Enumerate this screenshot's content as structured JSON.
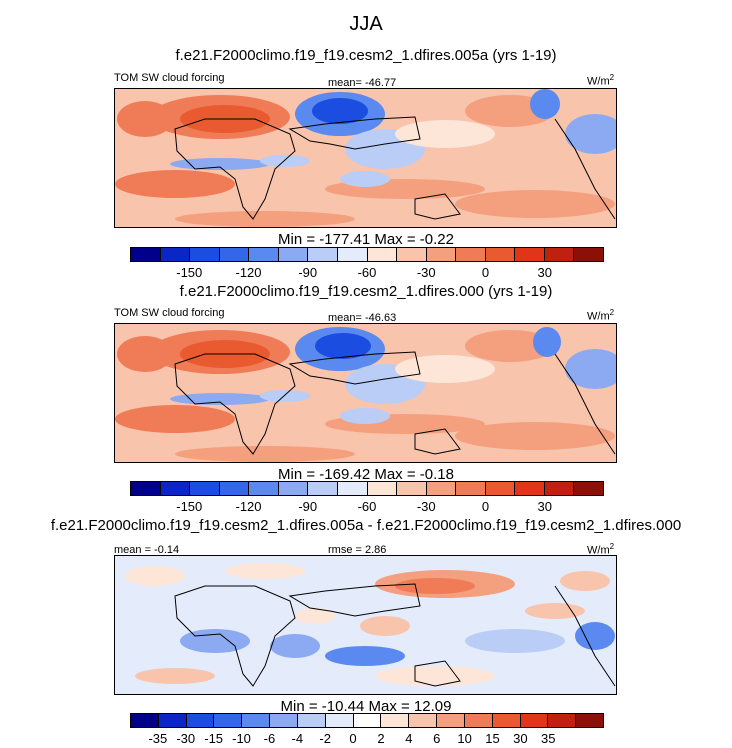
{
  "figure": {
    "title": "JJA",
    "colors": {
      "abs_scale": [
        "#00008b",
        "#0a26c6",
        "#1a4de0",
        "#3366e8",
        "#5a8af0",
        "#8caaf2",
        "#b9cdf7",
        "#e4ecfb",
        "#fde6d8",
        "#f8c4ac",
        "#f4a07e",
        "#ef7c56",
        "#ea5a30",
        "#e03518",
        "#c02010",
        "#8b1008"
      ],
      "diff_scale": [
        "#00008b",
        "#0a26c6",
        "#1a4de0",
        "#3366e8",
        "#5a8af0",
        "#8caaf2",
        "#b9cdf7",
        "#e4ecfb",
        "#ffffff",
        "#fde6d8",
        "#f8c4ac",
        "#f4a07e",
        "#ef7c56",
        "#ea5a30",
        "#e03518",
        "#c02010",
        "#8b1008"
      ],
      "land_outline": "#000000"
    }
  },
  "panels": [
    {
      "case_title": "f.e21.F2000climo.f19_f19.cesm2_1.dfires.005a (yrs 1-19)",
      "left_label": "TOM SW cloud forcing",
      "center_label": "mean= -46.77",
      "units": "W/m",
      "units_sup": "2",
      "minmax": "Min = -177.41 Max =  -0.22",
      "colorbar_ticks": [
        "-150",
        "-120",
        "-90",
        "-60",
        "-30",
        "0",
        "30"
      ]
    },
    {
      "case_title": "f.e21.F2000climo.f19_f19.cesm2_1.dfires.000 (yrs 1-19)",
      "left_label": "TOM SW cloud forcing",
      "center_label": "mean= -46.63",
      "units": "W/m",
      "units_sup": "2",
      "minmax": "Min = -169.42 Max =  -0.18",
      "colorbar_ticks": [
        "-150",
        "-120",
        "-90",
        "-60",
        "-30",
        "0",
        "30"
      ]
    },
    {
      "case_title": "f.e21.F2000climo.f19_f19.cesm2_1.dfires.005a - f.e21.F2000climo.f19_f19.cesm2_1.dfires.000",
      "left_label": "mean =  -0.14",
      "center_label": "rmse =  2.86",
      "units": "W/m",
      "units_sup": "2",
      "minmax": "Min = -10.44 Max =  12.09",
      "colorbar_ticks": [
        "-35",
        "-30",
        "-15",
        "-10",
        "-6",
        "-4",
        "-2",
        "0",
        "2",
        "4",
        "6",
        "10",
        "15",
        "30",
        "35"
      ]
    }
  ]
}
